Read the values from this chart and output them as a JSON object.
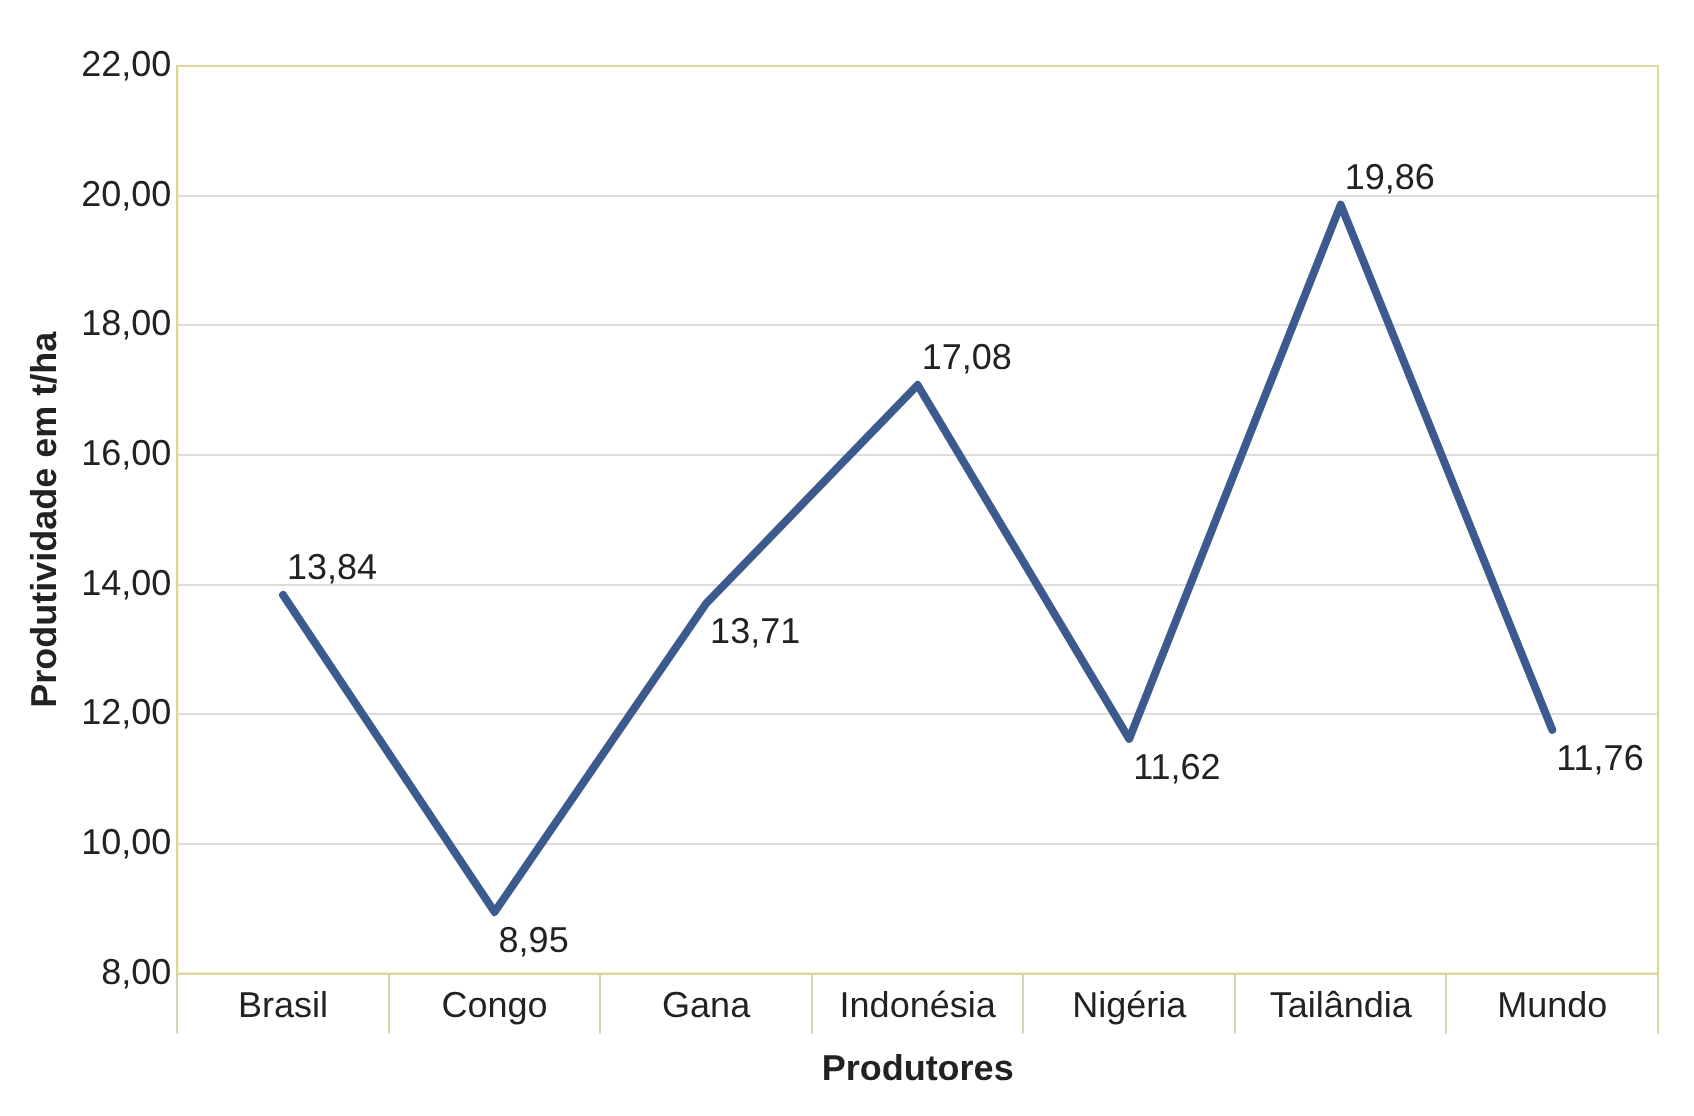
{
  "chart_data": {
    "type": "line",
    "xlabel": "Produtores",
    "ylabel": "Produtividade em t/ha",
    "categories": [
      "Brasil",
      "Congo",
      "Gana",
      "Indonésia",
      "Nigéria",
      "Tailândia",
      "Mundo"
    ],
    "values": [
      13.84,
      8.95,
      13.71,
      17.08,
      11.62,
      19.86,
      11.76
    ],
    "value_labels": [
      "13,84",
      "8,95",
      "13,71",
      "17,08",
      "11,62",
      "19,86",
      "11,76"
    ],
    "color": "#3c5a8e",
    "ylim": [
      8,
      22
    ],
    "yticks": [
      {
        "value": 8,
        "label": "8,00"
      },
      {
        "value": 10,
        "label": "10,00"
      },
      {
        "value": 12,
        "label": "12,00"
      },
      {
        "value": 14,
        "label": "14,00"
      },
      {
        "value": 16,
        "label": "16,00"
      },
      {
        "value": 18,
        "label": "18,00"
      },
      {
        "value": 20,
        "label": "20,00"
      },
      {
        "value": 22,
        "label": "22,00"
      }
    ],
    "grid": "y",
    "legend": false,
    "marker": "none",
    "line_style": "solid"
  }
}
